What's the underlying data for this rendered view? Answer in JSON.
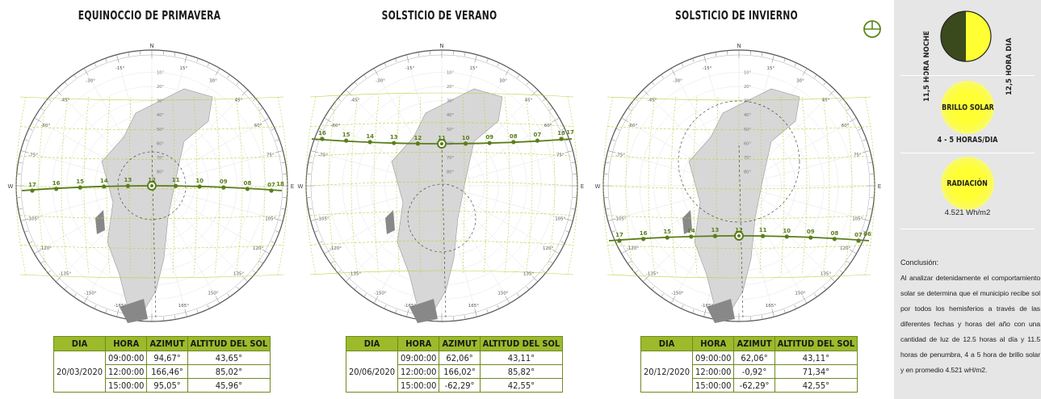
{
  "diagrams": [
    {
      "title": "EQUINOCCIO DE PRIMAVERA",
      "hours": [
        "17",
        "16",
        "15",
        "14",
        "13",
        "12",
        "11",
        "10",
        "09",
        "08",
        "07",
        "18"
      ],
      "table": {
        "date": "20/03/2020",
        "rows": [
          {
            "hora": "09:00:00",
            "azimut": "94,67°",
            "altitud": "43,65°"
          },
          {
            "hora": "12:00:00",
            "azimut": "166,46°",
            "altitud": "85,02°"
          },
          {
            "hora": "15:00:00",
            "azimut": "95,05°",
            "altitud": "45,96°"
          }
        ]
      }
    },
    {
      "title": "SOLSTICIO DE VERANO",
      "hours": [
        "16",
        "15",
        "14",
        "13",
        "12",
        "11",
        "10",
        "09",
        "08",
        "07",
        "18",
        "17"
      ],
      "table": {
        "date": "20/06/2020",
        "rows": [
          {
            "hora": "09:00:00",
            "azimut": "62,06°",
            "altitud": "43,11°"
          },
          {
            "hora": "12:00:00",
            "azimut": "166,02°",
            "altitud": "85,82°"
          },
          {
            "hora": "15:00:00",
            "azimut": "-62,29°",
            "altitud": "42,55°"
          }
        ]
      }
    },
    {
      "title": "SOLSTICIO DE INVIERNO",
      "hours": [
        "17",
        "16",
        "15",
        "14",
        "13",
        "12",
        "11",
        "10",
        "09",
        "08",
        "07",
        "06"
      ],
      "table": {
        "date": "20/12/2020",
        "rows": [
          {
            "hora": "09:00:00",
            "azimut": "62,06°",
            "altitud": "43,11°"
          },
          {
            "hora": "12:00:00",
            "azimut": "-0,92°",
            "altitud": "71,34°"
          },
          {
            "hora": "15:00:00",
            "azimut": "-62,29°",
            "altitud": "42,55°"
          }
        ]
      }
    }
  ],
  "table_headers": {
    "dia": "DIA",
    "hora": "HORA",
    "azimut": "AZIMUT",
    "altitud": "ALTITUD DEL SOL"
  },
  "compass": {
    "N": "N",
    "S": "S",
    "E": "E",
    "W": "W"
  },
  "azimuth_labels": [
    "15°",
    "30°",
    "45°",
    "60°",
    "75°",
    "105°",
    "120°",
    "135°",
    "150°",
    "165°",
    "-15°",
    "-30°",
    "-45°",
    "-60°",
    "-75°",
    "-105°",
    "-120°",
    "-135°",
    "-150°",
    "-165°"
  ],
  "altitude_labels": [
    "10°",
    "20°",
    "30°",
    "40°",
    "50°",
    "60°",
    "70°",
    "80°"
  ],
  "panel": {
    "night_label": "11,5 HORA NOCHE",
    "day_label": "12,5 HORA DIA",
    "brillo_label": "BRILLO SOLAR",
    "brillo_value": "4 - 5 HORAS/DIA",
    "radiacion_label": "RADIACIÓN",
    "radiacion_value": "4.521 Wh/m2",
    "conclusion_title": "Conclusión:",
    "conclusion_text": "Al analizar detenidamente el comportamiento solar se determina que el municipio recibe sol por todos los hemisferios a través de las diferentes fechas y horas del año con una cantidad de luz de 12.5 horas al día y 11.5 horas de penumbra, 4 a 5 hora de brillo solar y en promedio 4.521 wH/m2."
  },
  "colors": {
    "path": "#5a7d1a",
    "grid": "#b8d040",
    "header": "#9bbb2b",
    "sun": "#ffff33",
    "dark": "#3a4a1c"
  }
}
